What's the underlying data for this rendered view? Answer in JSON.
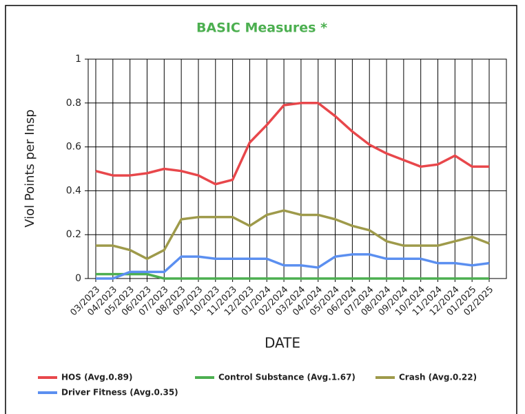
{
  "chart_data": {
    "type": "line",
    "title": "BASIC Measures *",
    "xlabel": "DATE",
    "ylabel": "Viol Points per Insp",
    "categories": [
      "03/2023",
      "04/2023",
      "05/2023",
      "06/2023",
      "07/2023",
      "08/2023",
      "09/2023",
      "10/2023",
      "11/2023",
      "12/2023",
      "01/2024",
      "02/2024",
      "03/2024",
      "04/2024",
      "05/2024",
      "06/2024",
      "07/2024",
      "08/2024",
      "09/2024",
      "10/2024",
      "11/2024",
      "12/2024",
      "01/2025",
      "02/2025"
    ],
    "series": [
      {
        "name": "HOS (Avg.0.89)",
        "color": "#e8474b",
        "values": [
          0.49,
          0.47,
          0.47,
          0.48,
          0.5,
          0.49,
          0.47,
          0.43,
          0.45,
          0.62,
          0.7,
          0.79,
          0.8,
          0.8,
          0.74,
          0.67,
          0.61,
          0.57,
          0.54,
          0.51,
          0.52,
          0.56,
          0.51,
          0.51
        ]
      },
      {
        "name": "Control Substance (Avg.1.67)",
        "color": "#4caf50",
        "values": [
          0.02,
          0.02,
          0.02,
          0.02,
          0,
          0,
          0,
          0,
          0,
          0,
          0,
          0,
          0,
          0,
          0,
          0,
          0,
          0,
          0,
          0,
          0,
          0,
          0,
          0
        ]
      },
      {
        "name": "Crash (Avg.0.22)",
        "color": "#9e9a4a",
        "values": [
          0.15,
          0.15,
          0.13,
          0.09,
          0.13,
          0.27,
          0.28,
          0.28,
          0.28,
          0.24,
          0.29,
          0.31,
          0.29,
          0.29,
          0.27,
          0.24,
          0.22,
          0.17,
          0.15,
          0.15,
          0.15,
          0.17,
          0.19,
          0.16
        ]
      },
      {
        "name": "Driver Fitness (Avg.0.35)",
        "color": "#5b8ff0",
        "values": [
          0,
          0,
          0.03,
          0.03,
          0.03,
          0.1,
          0.1,
          0.09,
          0.09,
          0.09,
          0.09,
          0.06,
          0.06,
          0.05,
          0.1,
          0.11,
          0.11,
          0.09,
          0.09,
          0.09,
          0.07,
          0.07,
          0.06,
          0.07
        ]
      }
    ],
    "ylim": [
      0,
      1
    ],
    "yticks": [
      0,
      0.2,
      0.4,
      0.6,
      0.8,
      1
    ],
    "grid": true
  }
}
